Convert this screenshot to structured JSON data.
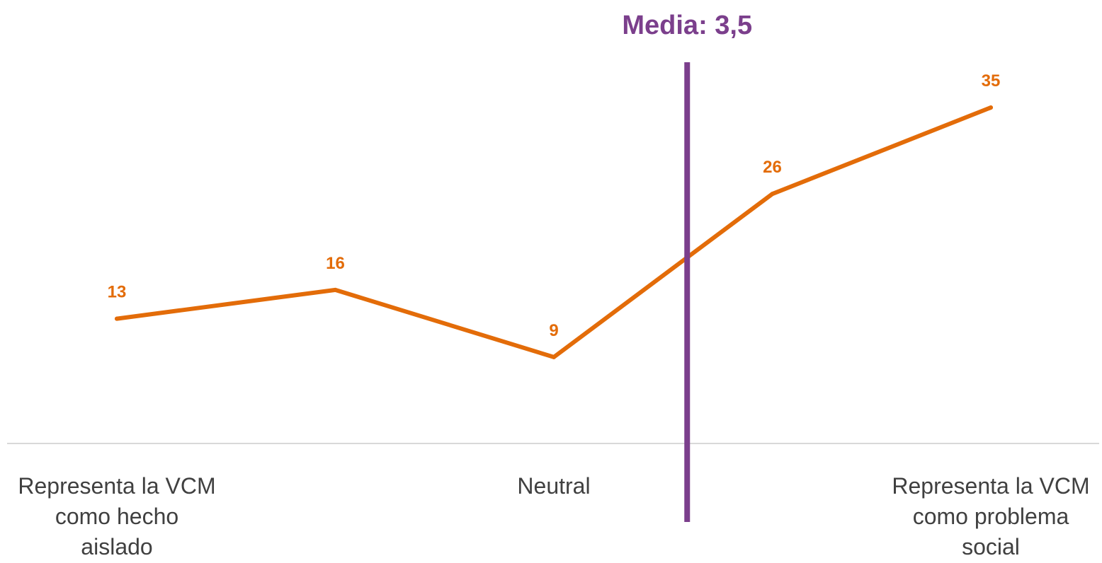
{
  "chart_data": {
    "type": "line",
    "x": [
      1,
      2,
      3,
      4,
      5
    ],
    "series": [
      {
        "values": [
          13,
          16,
          9,
          26,
          35
        ],
        "color": "#E36C09"
      }
    ],
    "x_axis_labels": [
      {
        "x": 1,
        "lines": [
          "Representa la VCM",
          "como hecho",
          "aislado"
        ]
      },
      {
        "x": 3,
        "lines": [
          "Neutral"
        ]
      },
      {
        "x": 5,
        "lines": [
          "Representa la VCM",
          "como problema",
          "social"
        ]
      }
    ],
    "reference_line": {
      "x": 3.5,
      "label": "Media: 3,5",
      "color": "#7B3F8C"
    },
    "ylim": [
      0,
      40
    ],
    "grid": false,
    "axis_color": "#D9D9D9",
    "category_text_color": "#404040"
  }
}
